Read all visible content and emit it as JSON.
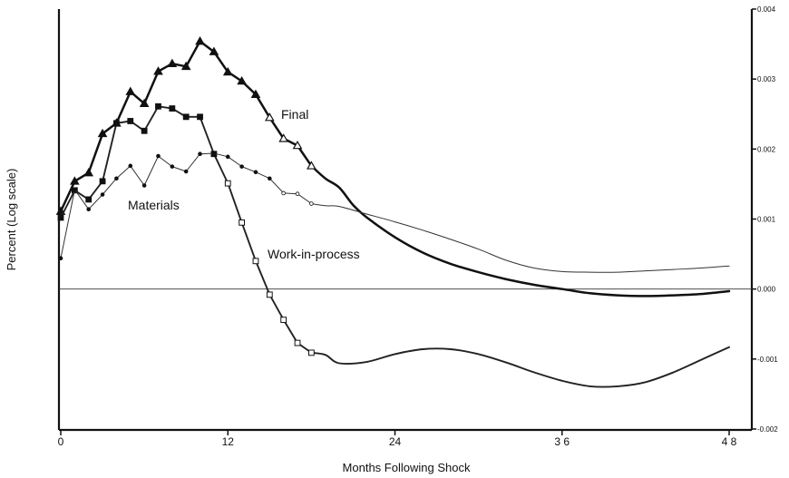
{
  "chart_data": {
    "type": "line",
    "title": "",
    "xlabel": "Months Following Shock",
    "ylabel": "Percent (Log scale)",
    "xlim": [
      0,
      48
    ],
    "ylim": [
      -0.002,
      0.004
    ],
    "x_ticks": [
      0,
      12,
      24,
      36,
      48
    ],
    "x_tick_labels": [
      "0",
      "12",
      "24",
      "3 6",
      "4 8"
    ],
    "y_ticks": [
      0.004,
      0.003,
      0.002,
      0.001,
      0.0,
      -0.001,
      -0.002
    ],
    "y_tick_labels": [
      "0.004",
      "0.003",
      "0.002",
      "0.001",
      "0.000",
      "-0.001",
      "-0.002"
    ],
    "y_axis_side": "right",
    "zero_line": true,
    "series": [
      {
        "name": "Final",
        "marker": "triangle",
        "x": [
          0,
          1,
          2,
          3,
          4,
          5,
          6,
          7,
          8,
          9,
          10,
          11,
          12,
          13,
          14,
          15,
          16,
          17,
          18,
          19,
          20,
          21,
          22,
          24,
          26,
          28,
          30,
          32,
          34,
          36,
          38,
          40,
          42,
          44,
          46,
          48
        ],
        "y": [
          0.00111,
          0.00154,
          0.00166,
          0.00222,
          0.00237,
          0.00282,
          0.00265,
          0.00311,
          0.00322,
          0.00318,
          0.00354,
          0.00339,
          0.0031,
          0.00297,
          0.00278,
          0.00245,
          0.00215,
          0.00205,
          0.00176,
          0.00158,
          0.00145,
          0.0012,
          0.00102,
          0.00074,
          0.00052,
          0.00036,
          0.00024,
          0.00014,
          6e-05,
          0.0,
          -6e-05,
          -9e-05,
          -0.0001,
          -9e-05,
          -7e-05,
          -3e-05
        ],
        "marker_count": 19
      },
      {
        "name": "Work-in-process",
        "marker": "square",
        "x": [
          0,
          1,
          2,
          3,
          4,
          5,
          6,
          7,
          8,
          9,
          10,
          11,
          12,
          13,
          14,
          15,
          16,
          17,
          18,
          19,
          20,
          22,
          24,
          26,
          28,
          30,
          32,
          34,
          36,
          38,
          40,
          42,
          44,
          46,
          48
        ],
        "y": [
          0.00102,
          0.00141,
          0.00128,
          0.00154,
          0.00237,
          0.0024,
          0.00226,
          0.00261,
          0.00258,
          0.00246,
          0.00246,
          0.00193,
          0.00151,
          0.00095,
          0.0004,
          -8e-05,
          -0.00044,
          -0.00077,
          -0.00091,
          -0.00094,
          -0.00106,
          -0.00104,
          -0.00093,
          -0.00086,
          -0.00086,
          -0.00093,
          -0.00105,
          -0.00119,
          -0.00131,
          -0.00139,
          -0.00139,
          -0.00133,
          -0.00119,
          -0.00101,
          -0.00083
        ],
        "marker_count": 19
      },
      {
        "name": "Materials",
        "marker": "dot",
        "x": [
          0,
          1,
          2,
          3,
          4,
          5,
          6,
          7,
          8,
          9,
          10,
          11,
          12,
          13,
          14,
          15,
          16,
          17,
          18,
          19,
          20,
          22,
          24,
          26,
          28,
          30,
          32,
          34,
          36,
          38,
          40,
          42,
          44,
          46,
          48
        ],
        "y": [
          0.00044,
          0.00142,
          0.00114,
          0.00135,
          0.00158,
          0.00176,
          0.00148,
          0.0019,
          0.00175,
          0.00168,
          0.00193,
          0.00194,
          0.00189,
          0.00175,
          0.00167,
          0.00158,
          0.00137,
          0.00136,
          0.00122,
          0.00119,
          0.00118,
          0.00107,
          0.00096,
          0.00084,
          0.00071,
          0.00057,
          0.00041,
          0.0003,
          0.00025,
          0.00024,
          0.00024,
          0.00026,
          0.00028,
          0.0003,
          0.00033
        ],
        "marker_count": 19
      }
    ],
    "annotations": [
      {
        "text": "Final",
        "series": "Final"
      },
      {
        "text": "Materials",
        "series": "Materials"
      },
      {
        "text": "Work-in-process",
        "series": "Work-in-process"
      }
    ]
  }
}
